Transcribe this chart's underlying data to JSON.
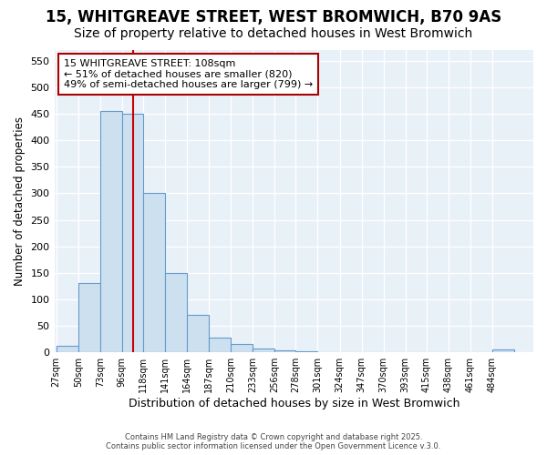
{
  "title": "15, WHITGREAVE STREET, WEST BROMWICH, B70 9AS",
  "subtitle": "Size of property relative to detached houses in West Bromwich",
  "xlabel": "Distribution of detached houses by size in West Bromwich",
  "ylabel": "Number of detached properties",
  "bin_labels": [
    "27sqm",
    "50sqm",
    "73sqm",
    "96sqm",
    "118sqm",
    "141sqm",
    "164sqm",
    "187sqm",
    "210sqm",
    "233sqm",
    "256sqm",
    "278sqm",
    "301sqm",
    "324sqm",
    "347sqm",
    "370sqm",
    "393sqm",
    "415sqm",
    "438sqm",
    "461sqm",
    "484sqm"
  ],
  "bin_edges": [
    27,
    50,
    73,
    96,
    118,
    141,
    164,
    187,
    210,
    233,
    256,
    278,
    301,
    324,
    347,
    370,
    393,
    415,
    438,
    461,
    484,
    507
  ],
  "bar_heights": [
    13,
    130,
    455,
    450,
    300,
    150,
    70,
    28,
    15,
    8,
    3,
    2,
    1,
    1,
    0,
    0,
    0,
    0,
    0,
    0,
    5
  ],
  "bar_color": "#cce0f0",
  "bar_edge_color": "#6699cc",
  "red_line_x": 108,
  "annotation_line1": "15 WHITGREAVE STREET: 108sqm",
  "annotation_line2": "← 51% of detached houses are smaller (820)",
  "annotation_line3": "49% of semi-detached houses are larger (799) →",
  "annotation_box_color": "#ffffff",
  "annotation_box_edge_color": "#aa0000",
  "ylim": [
    0,
    570
  ],
  "yticks": [
    0,
    50,
    100,
    150,
    200,
    250,
    300,
    350,
    400,
    450,
    500,
    550
  ],
  "footer_line1": "Contains HM Land Registry data © Crown copyright and database right 2025.",
  "footer_line2": "Contains public sector information licensed under the Open Government Licence v.3.0.",
  "bg_color": "#ffffff",
  "plot_bg_color": "#e8f0f8",
  "grid_color": "#ffffff",
  "title_fontsize": 12,
  "subtitle_fontsize": 10,
  "annotation_fontsize": 8
}
